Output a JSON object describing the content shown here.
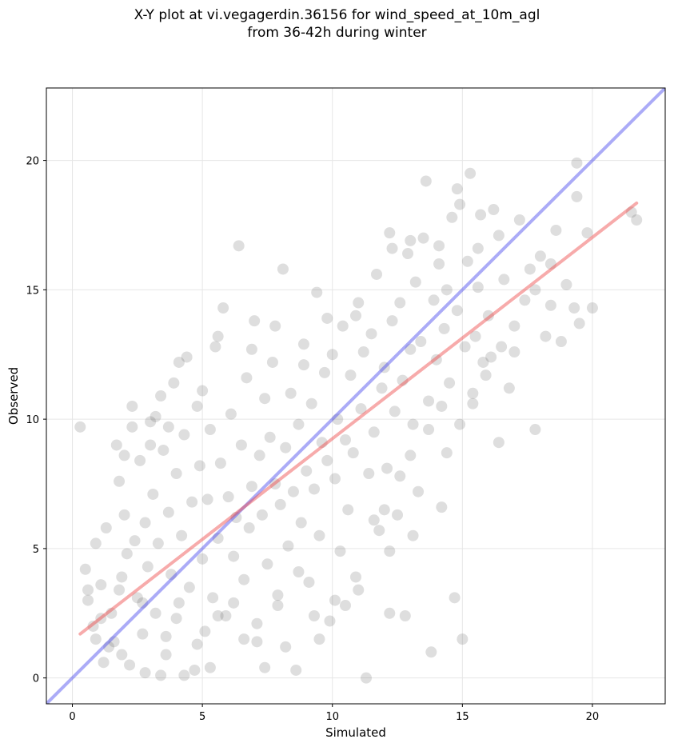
{
  "title": {
    "line1": "X-Y plot at vi.vegagerdin.36156 for wind_speed_at_10m_agl",
    "line2": "from 36-42h during winter"
  },
  "chart_data": {
    "type": "scatter",
    "xlabel": "Simulated",
    "ylabel": "Observed",
    "xlim": [
      -1,
      22.8
    ],
    "ylim": [
      -1,
      22.8
    ],
    "xticks": [
      0,
      5,
      10,
      15,
      20
    ],
    "yticks": [
      0,
      5,
      10,
      15,
      20
    ],
    "grid": true,
    "point_color": "#5a5a5a",
    "point_opacity": 0.2,
    "identity_line": {
      "color": "#4444ee",
      "x": [
        -1,
        22.8
      ],
      "y": [
        -1,
        22.8
      ]
    },
    "fit_line": {
      "color": "#ee4444",
      "x": [
        0.3,
        21.7
      ],
      "y": [
        1.7,
        18.35
      ]
    },
    "series": [
      {
        "points": [
          [
            0.3,
            9.7
          ],
          [
            0.5,
            4.2
          ],
          [
            0.6,
            3.0
          ],
          [
            0.8,
            2.0
          ],
          [
            0.9,
            5.2
          ],
          [
            1.1,
            3.6
          ],
          [
            1.2,
            0.6
          ],
          [
            1.3,
            5.8
          ],
          [
            1.5,
            2.5
          ],
          [
            1.6,
            1.4
          ],
          [
            1.7,
            9.0
          ],
          [
            1.8,
            7.6
          ],
          [
            1.9,
            3.9
          ],
          [
            2.0,
            6.3
          ],
          [
            2.1,
            4.8
          ],
          [
            2.2,
            0.5
          ],
          [
            2.3,
            9.7
          ],
          [
            2.4,
            5.3
          ],
          [
            2.5,
            3.1
          ],
          [
            2.6,
            8.4
          ],
          [
            2.7,
            1.7
          ],
          [
            2.8,
            6.0
          ],
          [
            2.9,
            4.3
          ],
          [
            3.0,
            9.9
          ],
          [
            3.1,
            7.1
          ],
          [
            3.2,
            2.5
          ],
          [
            3.3,
            5.2
          ],
          [
            3.4,
            10.9
          ],
          [
            3.5,
            8.8
          ],
          [
            3.6,
            0.9
          ],
          [
            3.7,
            6.4
          ],
          [
            3.8,
            4.0
          ],
          [
            3.9,
            11.4
          ],
          [
            4.0,
            7.9
          ],
          [
            4.1,
            2.9
          ],
          [
            4.2,
            5.5
          ],
          [
            4.3,
            9.4
          ],
          [
            4.4,
            12.4
          ],
          [
            4.5,
            3.5
          ],
          [
            4.6,
            6.8
          ],
          [
            4.7,
            0.3
          ],
          [
            4.8,
            10.5
          ],
          [
            4.9,
            8.2
          ],
          [
            5.0,
            4.6
          ],
          [
            5.1,
            1.8
          ],
          [
            5.2,
            6.9
          ],
          [
            5.3,
            9.6
          ],
          [
            5.4,
            3.1
          ],
          [
            5.5,
            12.8
          ],
          [
            5.6,
            5.4
          ],
          [
            5.7,
            8.3
          ],
          [
            5.8,
            14.3
          ],
          [
            5.9,
            2.4
          ],
          [
            6.0,
            7.0
          ],
          [
            6.1,
            10.2
          ],
          [
            6.2,
            4.7
          ],
          [
            6.3,
            6.2
          ],
          [
            6.4,
            16.7
          ],
          [
            6.5,
            9.0
          ],
          [
            6.6,
            3.8
          ],
          [
            6.7,
            11.6
          ],
          [
            6.8,
            5.8
          ],
          [
            6.9,
            7.4
          ],
          [
            7.0,
            13.8
          ],
          [
            7.1,
            1.4
          ],
          [
            7.2,
            8.6
          ],
          [
            7.3,
            6.3
          ],
          [
            7.4,
            10.8
          ],
          [
            7.5,
            4.4
          ],
          [
            7.6,
            9.3
          ],
          [
            7.7,
            12.2
          ],
          [
            7.8,
            7.5
          ],
          [
            7.9,
            2.8
          ],
          [
            8.0,
            6.7
          ],
          [
            8.1,
            15.8
          ],
          [
            8.2,
            8.9
          ],
          [
            8.3,
            5.1
          ],
          [
            8.4,
            11.0
          ],
          [
            8.5,
            7.2
          ],
          [
            8.6,
            0.3
          ],
          [
            8.7,
            9.8
          ],
          [
            8.8,
            6.0
          ],
          [
            8.9,
            12.9
          ],
          [
            9.0,
            8.0
          ],
          [
            9.1,
            3.7
          ],
          [
            9.2,
            10.6
          ],
          [
            9.3,
            7.3
          ],
          [
            9.4,
            14.9
          ],
          [
            9.5,
            5.5
          ],
          [
            9.6,
            9.1
          ],
          [
            9.7,
            11.8
          ],
          [
            9.8,
            8.4
          ],
          [
            9.9,
            2.2
          ],
          [
            10.0,
            12.5
          ],
          [
            10.1,
            7.7
          ],
          [
            10.2,
            10.0
          ],
          [
            10.3,
            4.9
          ],
          [
            10.4,
            13.6
          ],
          [
            10.5,
            9.2
          ],
          [
            10.6,
            6.5
          ],
          [
            10.7,
            11.7
          ],
          [
            10.8,
            8.7
          ],
          [
            10.9,
            14.0
          ],
          [
            11.0,
            3.4
          ],
          [
            11.1,
            10.4
          ],
          [
            11.2,
            12.6
          ],
          [
            11.3,
            0.0
          ],
          [
            11.4,
            7.9
          ],
          [
            11.5,
            13.3
          ],
          [
            11.6,
            9.5
          ],
          [
            11.7,
            15.6
          ],
          [
            11.8,
            5.7
          ],
          [
            11.9,
            11.2
          ],
          [
            12.0,
            12.0
          ],
          [
            12.1,
            8.1
          ],
          [
            12.2,
            17.2
          ],
          [
            12.3,
            13.8
          ],
          [
            12.4,
            10.3
          ],
          [
            12.5,
            6.3
          ],
          [
            12.6,
            14.5
          ],
          [
            12.7,
            11.5
          ],
          [
            12.8,
            2.4
          ],
          [
            12.9,
            16.4
          ],
          [
            13.0,
            12.7
          ],
          [
            13.1,
            9.8
          ],
          [
            13.2,
            15.3
          ],
          [
            13.3,
            7.2
          ],
          [
            13.4,
            13.0
          ],
          [
            13.5,
            17.0
          ],
          [
            13.6,
            19.2
          ],
          [
            13.7,
            10.7
          ],
          [
            13.8,
            1.0
          ],
          [
            13.9,
            14.6
          ],
          [
            14.0,
            12.3
          ],
          [
            14.1,
            16.0
          ],
          [
            14.2,
            6.6
          ],
          [
            14.3,
            13.5
          ],
          [
            14.4,
            15.0
          ],
          [
            14.5,
            11.4
          ],
          [
            14.6,
            17.8
          ],
          [
            14.7,
            3.1
          ],
          [
            14.8,
            14.2
          ],
          [
            14.9,
            18.3
          ],
          [
            15.0,
            1.5
          ],
          [
            15.1,
            12.8
          ],
          [
            15.2,
            16.1
          ],
          [
            15.3,
            19.5
          ],
          [
            15.4,
            11.0
          ],
          [
            15.5,
            13.2
          ],
          [
            15.6,
            15.1
          ],
          [
            15.7,
            17.9
          ],
          [
            15.8,
            12.2
          ],
          [
            16.0,
            14.0
          ],
          [
            16.2,
            18.1
          ],
          [
            16.4,
            9.1
          ],
          [
            16.6,
            15.4
          ],
          [
            16.8,
            11.2
          ],
          [
            17.0,
            13.6
          ],
          [
            17.2,
            17.7
          ],
          [
            17.4,
            14.6
          ],
          [
            17.6,
            15.8
          ],
          [
            17.8,
            9.6
          ],
          [
            18.0,
            16.3
          ],
          [
            18.2,
            13.2
          ],
          [
            18.4,
            14.4
          ],
          [
            18.6,
            17.3
          ],
          [
            18.8,
            13.0
          ],
          [
            19.0,
            15.2
          ],
          [
            19.3,
            14.3
          ],
          [
            19.4,
            19.9
          ],
          [
            19.5,
            13.7
          ],
          [
            19.8,
            17.2
          ],
          [
            20.0,
            14.3
          ],
          [
            21.7,
            17.7
          ],
          [
            21.5,
            18.0
          ],
          [
            19.4,
            18.6
          ],
          [
            12.2,
            2.5
          ],
          [
            13.1,
            5.5
          ],
          [
            10.5,
            2.8
          ],
          [
            9.5,
            1.5
          ],
          [
            8.2,
            1.2
          ],
          [
            7.4,
            0.4
          ],
          [
            6.6,
            1.5
          ],
          [
            5.3,
            0.4
          ],
          [
            4.3,
            0.1
          ],
          [
            3.4,
            0.1
          ],
          [
            2.8,
            0.2
          ],
          [
            1.9,
            0.9
          ],
          [
            1.1,
            2.3
          ],
          [
            0.6,
            3.4
          ],
          [
            2.3,
            10.5
          ],
          [
            3.2,
            10.1
          ],
          [
            4.1,
            12.2
          ],
          [
            5.0,
            11.1
          ],
          [
            5.6,
            13.2
          ],
          [
            6.9,
            12.7
          ],
          [
            7.8,
            13.6
          ],
          [
            8.9,
            12.1
          ],
          [
            9.8,
            13.9
          ],
          [
            11.0,
            14.5
          ],
          [
            12.3,
            16.6
          ],
          [
            13.0,
            16.9
          ],
          [
            14.1,
            16.7
          ],
          [
            14.8,
            18.9
          ],
          [
            15.6,
            16.6
          ],
          [
            16.4,
            17.1
          ],
          [
            17.0,
            12.6
          ],
          [
            16.5,
            12.8
          ],
          [
            17.8,
            15.0
          ],
          [
            18.4,
            16.0
          ],
          [
            12.2,
            4.9
          ],
          [
            11.6,
            6.1
          ],
          [
            10.9,
            3.9
          ],
          [
            10.1,
            3.0
          ],
          [
            9.3,
            2.4
          ],
          [
            8.7,
            4.1
          ],
          [
            7.9,
            3.2
          ],
          [
            7.1,
            2.1
          ],
          [
            6.2,
            2.9
          ],
          [
            5.6,
            2.4
          ],
          [
            4.8,
            1.3
          ],
          [
            4.0,
            2.3
          ],
          [
            3.6,
            1.6
          ],
          [
            2.7,
            2.9
          ],
          [
            1.8,
            3.4
          ],
          [
            1.4,
            1.2
          ],
          [
            0.9,
            1.5
          ],
          [
            2.0,
            8.6
          ],
          [
            3.0,
            9.0
          ],
          [
            3.7,
            9.7
          ],
          [
            12.0,
            6.5
          ],
          [
            12.6,
            7.8
          ],
          [
            13.0,
            8.6
          ],
          [
            14.4,
            8.7
          ],
          [
            14.9,
            9.8
          ],
          [
            15.4,
            10.6
          ],
          [
            15.9,
            11.7
          ],
          [
            16.1,
            12.4
          ],
          [
            13.7,
            9.6
          ],
          [
            14.2,
            10.5
          ]
        ]
      }
    ]
  }
}
